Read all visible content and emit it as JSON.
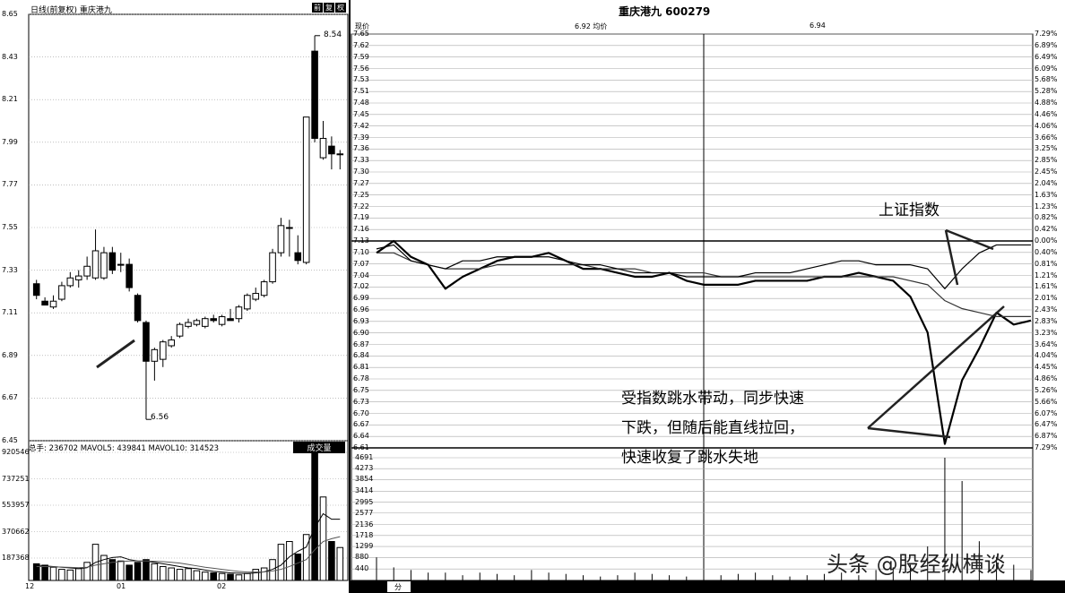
{
  "left_panel": {
    "header_label": "日线(前复权) 重庆港九",
    "header_buttons": [
      "前",
      "复",
      "权"
    ],
    "price_ticks": [
      "8.65",
      "8.43",
      "8.21",
      "7.99",
      "7.77",
      "7.55",
      "7.33",
      "7.11",
      "6.89",
      "6.67",
      "6.45"
    ],
    "high_label": "8.54",
    "low_label": "6.56",
    "volume_header": "总手: 236702 MAVOL5: 439841 MAVOL10: 314523",
    "volume_button": "成交量",
    "volume_ticks": [
      "920546",
      "737251",
      "553957",
      "370662",
      "187368"
    ],
    "date_ticks": [
      "12",
      "01",
      "02"
    ]
  },
  "right_panel": {
    "title": "重庆港九 600279",
    "price_label": "现价",
    "avg_label": "6.92 均价",
    "avg_value": "6.94",
    "price_ticks": [
      "7.65",
      "7.62",
      "7.59",
      "7.56",
      "7.53",
      "7.51",
      "7.48",
      "7.45",
      "7.42",
      "7.39",
      "7.36",
      "7.33",
      "7.30",
      "7.27",
      "7.25",
      "7.22",
      "7.19",
      "7.16",
      "7.13",
      "7.10",
      "7.07",
      "7.04",
      "7.02",
      "6.99",
      "6.96",
      "6.93",
      "6.90",
      "6.87",
      "6.84",
      "6.81",
      "6.78",
      "6.75",
      "6.73",
      "6.70",
      "6.67",
      "6.64",
      "6.61"
    ],
    "pct_ticks": [
      "7.29%",
      "6.89%",
      "6.49%",
      "6.09%",
      "5.68%",
      "5.28%",
      "4.88%",
      "4.46%",
      "4.06%",
      "3.66%",
      "3.25%",
      "2.85%",
      "2.45%",
      "2.04%",
      "1.63%",
      "1.23%",
      "0.82%",
      "0.42%",
      "0.00%",
      "0.40%",
      "0.81%",
      "1.21%",
      "1.61%",
      "2.01%",
      "2.43%",
      "2.83%",
      "3.23%",
      "3.64%",
      "4.04%",
      "4.45%",
      "4.86%",
      "5.26%",
      "5.66%",
      "6.07%",
      "6.47%",
      "6.87%",
      "7.29%"
    ],
    "volume_ticks": [
      "4691",
      "4273",
      "3854",
      "3414",
      "2995",
      "2577",
      "2136",
      "1718",
      "1299",
      "880",
      "440"
    ],
    "bottom_tab": "分",
    "annotation_index": "上证指数",
    "annotation_text": [
      "受指数跳水带动，同步快速",
      "下跌，但随后能直线拉回，",
      "快速收复了跳水失地"
    ],
    "watermark": "头条 @股经纵横谈"
  },
  "chart_data": [
    {
      "type": "candlestick",
      "title": "日线(前复权) 重庆港九",
      "ylim": [
        6.45,
        8.65
      ],
      "candles": [
        {
          "o": 7.26,
          "h": 7.28,
          "l": 7.18,
          "c": 7.2,
          "up": false
        },
        {
          "o": 7.17,
          "h": 7.19,
          "l": 7.15,
          "c": 7.15,
          "up": false
        },
        {
          "o": 7.14,
          "h": 7.2,
          "l": 7.13,
          "c": 7.17,
          "up": true
        },
        {
          "o": 7.18,
          "h": 7.27,
          "l": 7.17,
          "c": 7.25,
          "up": true
        },
        {
          "o": 7.25,
          "h": 7.32,
          "l": 7.24,
          "c": 7.29,
          "up": true
        },
        {
          "o": 7.28,
          "h": 7.33,
          "l": 7.24,
          "c": 7.3,
          "up": true
        },
        {
          "o": 7.3,
          "h": 7.4,
          "l": 7.28,
          "c": 7.35,
          "up": true
        },
        {
          "o": 7.29,
          "h": 7.54,
          "l": 7.28,
          "c": 7.43,
          "up": true
        },
        {
          "o": 7.29,
          "h": 7.45,
          "l": 7.28,
          "c": 7.42,
          "up": true
        },
        {
          "o": 7.42,
          "h": 7.45,
          "l": 7.31,
          "c": 7.33,
          "up": false
        },
        {
          "o": 7.36,
          "h": 7.42,
          "l": 7.32,
          "c": 7.36,
          "up": true
        },
        {
          "o": 7.36,
          "h": 7.39,
          "l": 7.22,
          "c": 7.24,
          "up": false
        },
        {
          "o": 7.2,
          "h": 7.21,
          "l": 7.06,
          "c": 7.07,
          "up": false
        },
        {
          "o": 7.06,
          "h": 7.07,
          "l": 6.56,
          "c": 6.86,
          "up": false
        },
        {
          "o": 6.86,
          "h": 6.93,
          "l": 6.76,
          "c": 6.92,
          "up": true
        },
        {
          "o": 6.87,
          "h": 6.97,
          "l": 6.83,
          "c": 6.96,
          "up": true
        },
        {
          "o": 6.94,
          "h": 6.99,
          "l": 6.93,
          "c": 6.97,
          "up": true
        },
        {
          "o": 6.99,
          "h": 7.06,
          "l": 6.98,
          "c": 7.05,
          "up": true
        },
        {
          "o": 7.04,
          "h": 7.08,
          "l": 7.03,
          "c": 7.06,
          "up": true
        },
        {
          "o": 7.05,
          "h": 7.08,
          "l": 7.04,
          "c": 7.07,
          "up": true
        },
        {
          "o": 7.04,
          "h": 7.09,
          "l": 7.03,
          "c": 7.08,
          "up": true
        },
        {
          "o": 7.08,
          "h": 7.1,
          "l": 7.06,
          "c": 7.07,
          "up": false
        },
        {
          "o": 7.05,
          "h": 7.1,
          "l": 7.04,
          "c": 7.09,
          "up": true
        },
        {
          "o": 7.07,
          "h": 7.13,
          "l": 7.07,
          "c": 7.08,
          "up": false
        },
        {
          "o": 7.08,
          "h": 7.15,
          "l": 7.06,
          "c": 7.14,
          "up": true
        },
        {
          "o": 7.13,
          "h": 7.21,
          "l": 7.12,
          "c": 7.2,
          "up": true
        },
        {
          "o": 7.18,
          "h": 7.24,
          "l": 7.17,
          "c": 7.21,
          "up": true
        },
        {
          "o": 7.2,
          "h": 7.28,
          "l": 7.19,
          "c": 7.27,
          "up": true
        },
        {
          "o": 7.27,
          "h": 7.44,
          "l": 7.26,
          "c": 7.42,
          "up": true
        },
        {
          "o": 7.42,
          "h": 7.6,
          "l": 7.4,
          "c": 7.56,
          "up": true
        },
        {
          "o": 7.55,
          "h": 7.59,
          "l": 7.4,
          "c": 7.55,
          "up": true
        },
        {
          "o": 7.42,
          "h": 7.51,
          "l": 7.36,
          "c": 7.38,
          "up": false
        },
        {
          "o": 7.37,
          "h": 8.12,
          "l": 7.36,
          "c": 8.12,
          "up": true
        },
        {
          "o": 8.46,
          "h": 8.54,
          "l": 7.99,
          "c": 8.01,
          "up": false
        },
        {
          "o": 7.91,
          "h": 8.1,
          "l": 7.9,
          "c": 8.01,
          "up": true
        },
        {
          "o": 7.97,
          "h": 8.02,
          "l": 7.85,
          "c": 7.93,
          "up": false
        },
        {
          "o": 7.93,
          "h": 7.95,
          "l": 7.85,
          "c": 7.93,
          "up": true
        }
      ]
    },
    {
      "type": "bar",
      "title": "成交量",
      "ylim": [
        0,
        920546
      ],
      "values": [
        120000,
        110000,
        95000,
        80000,
        75000,
        85000,
        130000,
        260000,
        180000,
        150000,
        140000,
        110000,
        130000,
        150000,
        120000,
        100000,
        90000,
        80000,
        85000,
        70000,
        60000,
        55000,
        50000,
        45000,
        40000,
        50000,
        80000,
        90000,
        150000,
        260000,
        280000,
        190000,
        330000,
        920546,
        600000,
        280000,
        236702
      ],
      "ma5": [
        110000,
        105000,
        100000,
        95000,
        90000,
        85000,
        92000,
        130000,
        150000,
        165000,
        170000,
        150000,
        140000,
        138000,
        130000,
        120000,
        110000,
        100000,
        90000,
        85000,
        75000,
        65000,
        60000,
        55000,
        52000,
        50000,
        55000,
        62000,
        80000,
        110000,
        170000,
        210000,
        240000,
        380000,
        480000,
        440000,
        439841
      ],
      "ma10": [
        100000,
        100000,
        98000,
        96000,
        94000,
        92000,
        95000,
        110000,
        120000,
        130000,
        135000,
        140000,
        140000,
        140000,
        138000,
        135000,
        130000,
        125000,
        115000,
        105000,
        95000,
        88000,
        80000,
        72000,
        65000,
        60000,
        60000,
        62000,
        68000,
        80000,
        100000,
        125000,
        150000,
        220000,
        280000,
        300000,
        314523
      ]
    },
    {
      "type": "line",
      "title": "重庆港九 600279",
      "ylim": [
        6.61,
        7.65
      ],
      "series": [
        {
          "name": "现价",
          "values": [
            7.1,
            7.13,
            7.09,
            7.07,
            7.01,
            7.04,
            7.06,
            7.08,
            7.09,
            7.09,
            7.1,
            7.08,
            7.06,
            7.06,
            7.05,
            7.04,
            7.04,
            7.05,
            7.03,
            7.02,
            7.02,
            7.02,
            7.03,
            7.03,
            7.03,
            7.03,
            7.04,
            7.04,
            7.05,
            7.04,
            7.03,
            6.99,
            6.9,
            6.62,
            6.78,
            6.86,
            6.95,
            6.92,
            6.93
          ]
        },
        {
          "name": "均价",
          "values": [
            7.1,
            7.1,
            7.08,
            7.07,
            7.06,
            7.06,
            7.06,
            7.07,
            7.07,
            7.07,
            7.07,
            7.07,
            7.07,
            7.06,
            7.06,
            7.06,
            7.05,
            7.05,
            7.05,
            7.05,
            7.04,
            7.04,
            7.04,
            7.04,
            7.04,
            7.04,
            7.04,
            7.04,
            7.04,
            7.04,
            7.04,
            7.03,
            7.02,
            6.98,
            6.96,
            6.95,
            6.94,
            6.94,
            6.94
          ]
        },
        {
          "name": "上证指数",
          "values": [
            7.11,
            7.12,
            7.08,
            7.07,
            7.06,
            7.08,
            7.08,
            7.09,
            7.09,
            7.09,
            7.09,
            7.08,
            7.07,
            7.07,
            7.06,
            7.05,
            7.05,
            7.05,
            7.04,
            7.04,
            7.04,
            7.04,
            7.05,
            7.05,
            7.05,
            7.06,
            7.07,
            7.08,
            7.08,
            7.07,
            7.07,
            7.07,
            7.06,
            7.01,
            7.06,
            7.1,
            7.12,
            7.12,
            7.12
          ]
        }
      ],
      "volume": [
        880,
        500,
        400,
        300,
        300,
        200,
        300,
        250,
        200,
        400,
        300,
        250,
        200,
        150,
        200,
        300,
        250,
        200,
        150,
        200,
        200,
        250,
        300,
        200,
        150,
        200,
        250,
        300,
        200,
        400,
        500,
        600,
        1300,
        4691,
        3800,
        1500,
        900,
        600,
        400
      ]
    }
  ]
}
